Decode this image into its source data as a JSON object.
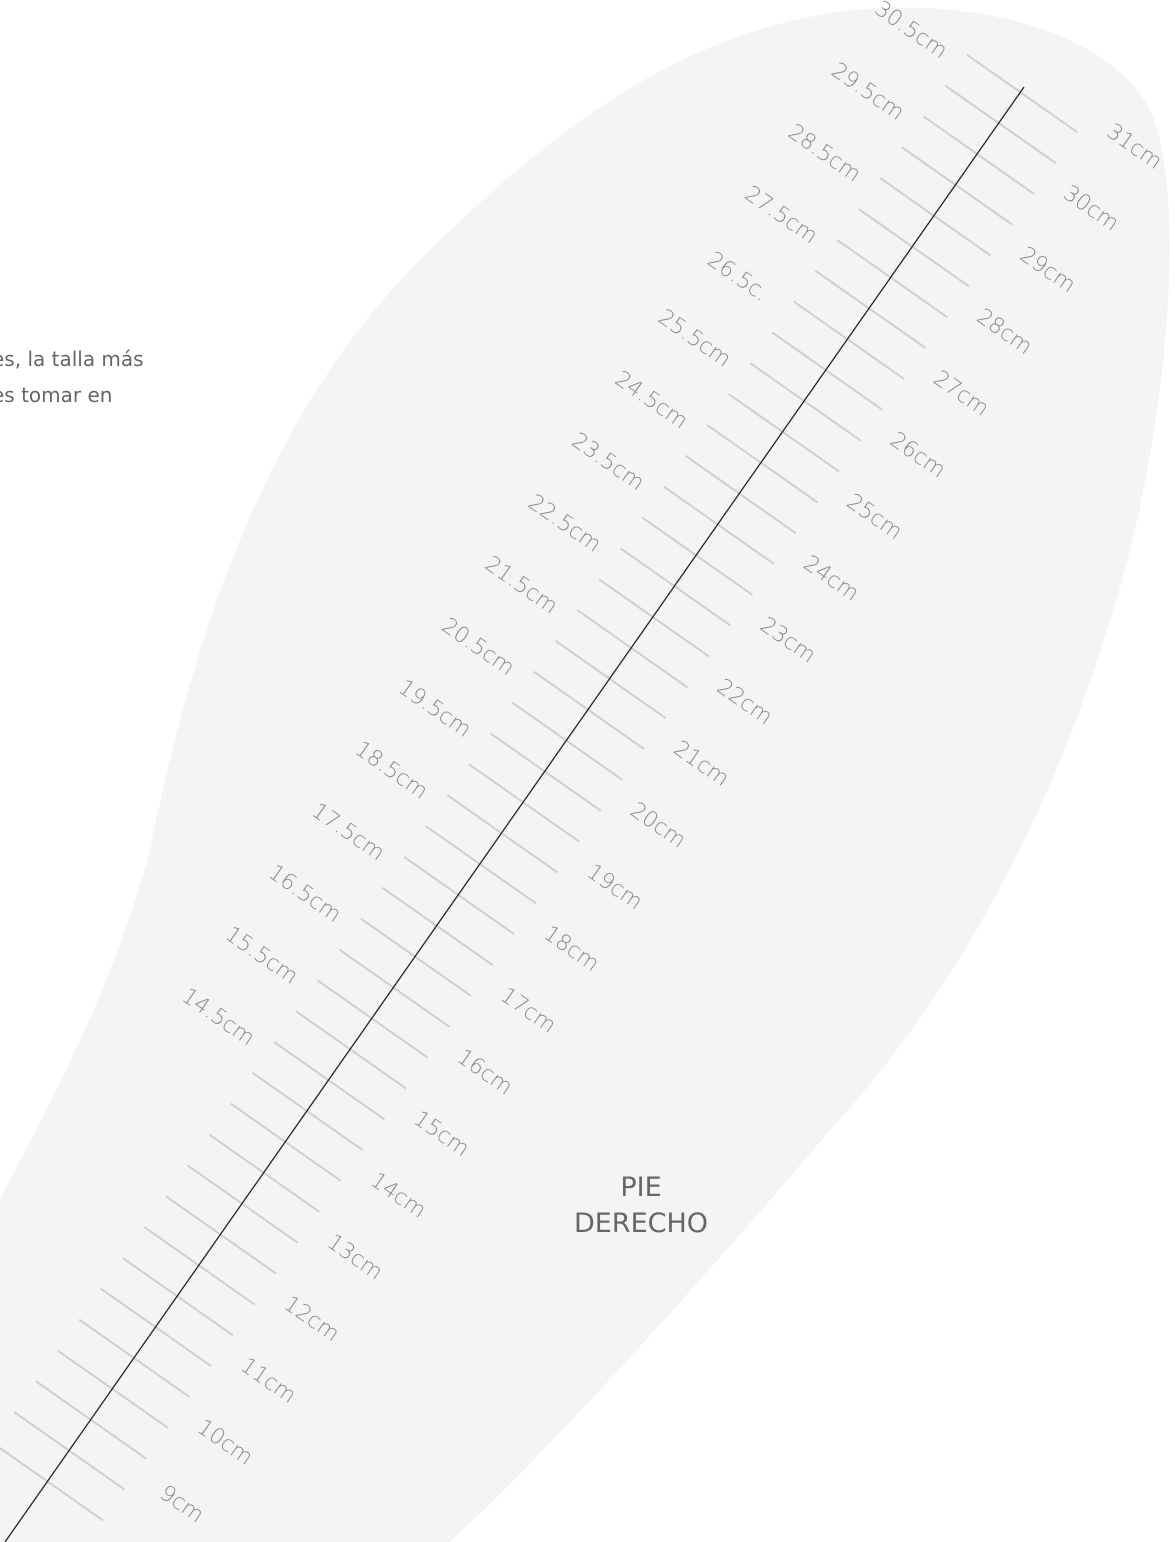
{
  "intro_text": [
    "es, la talla más",
    "es tomar en"
  ],
  "scale": {
    "left_labels": [
      "30.5cm",
      "29.5cm",
      "28.5cm",
      "27.5cm",
      "26.5c.",
      "25.5cm",
      "24.5cm",
      "23.5cm",
      "22.5cm",
      "21.5cm",
      "20.5cm",
      "19.5cm",
      "18.5cm",
      "17.5cm",
      "16.5cm",
      "15.5cm",
      "14.5cm"
    ],
    "right_labels": [
      "31cm",
      "30cm",
      "29cm",
      "28cm",
      "27cm",
      "26cm",
      "25cm",
      "24cm",
      "23cm",
      "22cm",
      "21cm",
      "20cm",
      "19cm",
      "18cm",
      "17cm",
      "16cm",
      "15cm",
      "14cm",
      "13cm",
      "12cm",
      "11cm",
      "10cm",
      "9cm"
    ]
  },
  "label": {
    "lines": [
      "PIE",
      "DERECHO"
    ]
  }
}
